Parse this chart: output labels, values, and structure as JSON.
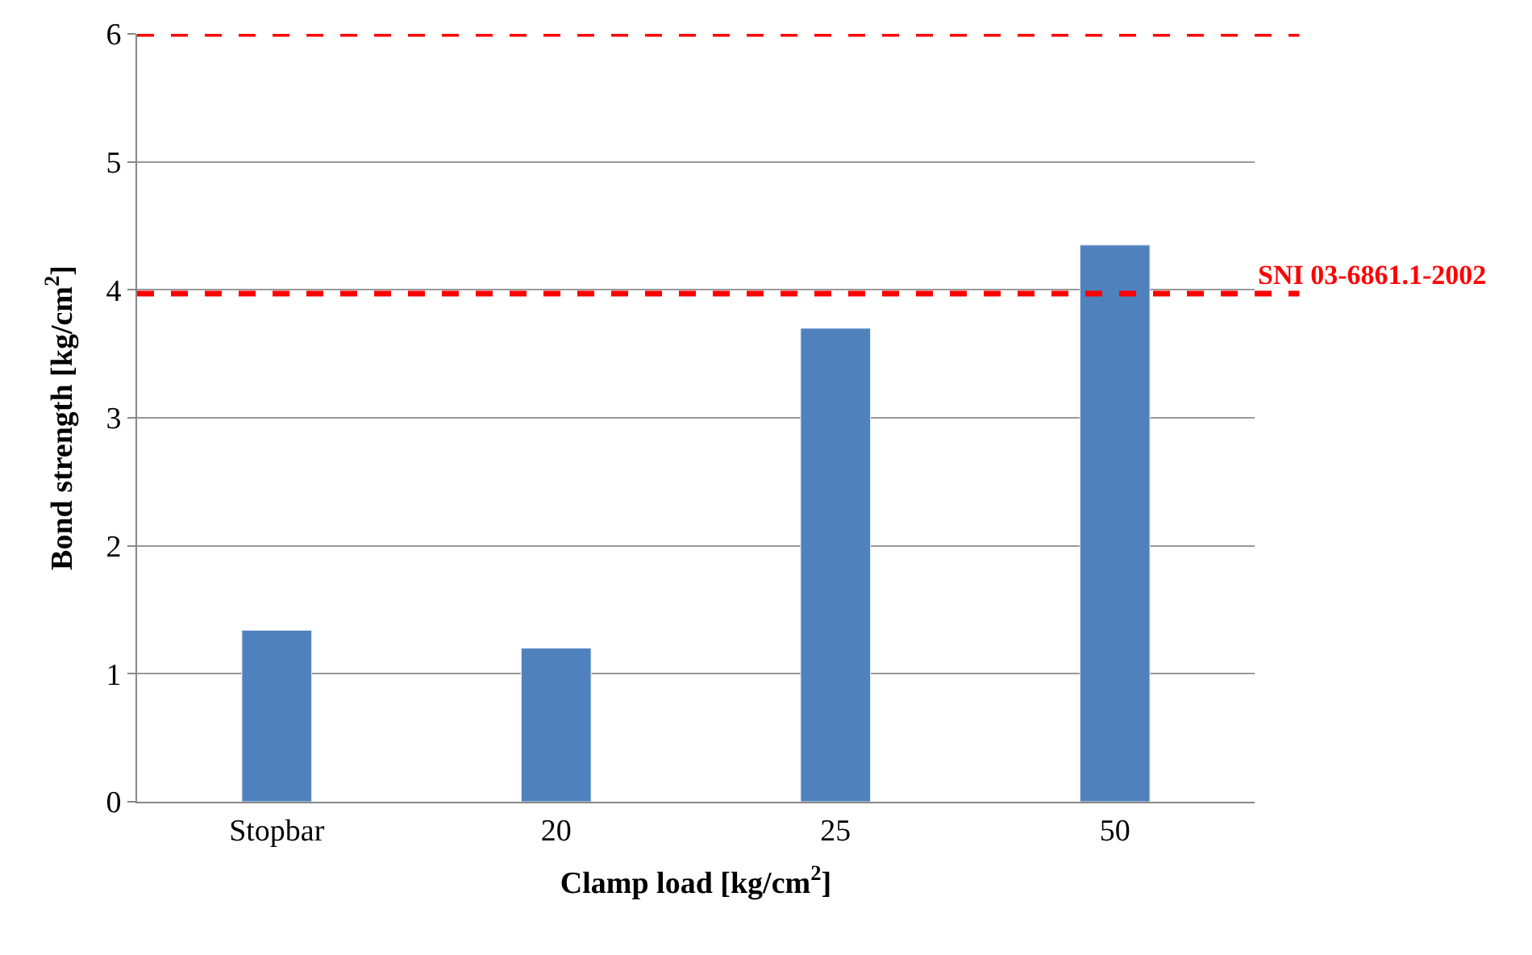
{
  "chart_data": {
    "type": "bar",
    "xlabel": "Clamp load [kg/cm$^{2}$]",
    "ylabel": "Bond strength [kg/cm$^{2}$]",
    "categories": [
      "Stopbar",
      "20",
      "25",
      "50"
    ],
    "values": [
      1.34,
      1.2,
      3.7,
      4.35
    ],
    "color": "#4f81bd",
    "ylim": [
      0,
      6
    ],
    "yticks": [
      0,
      1,
      2,
      3,
      4,
      5,
      6
    ],
    "grid": "y",
    "ref_lines": [
      {
        "axis": "y",
        "value": 6,
        "label": null,
        "color": "#ff0000",
        "line_style": "dashed"
      },
      {
        "axis": "y",
        "value": 3.97,
        "label": "SNI 03-6861.1-2002",
        "color": "#ff0000",
        "line_style": "dashed"
      }
    ]
  }
}
